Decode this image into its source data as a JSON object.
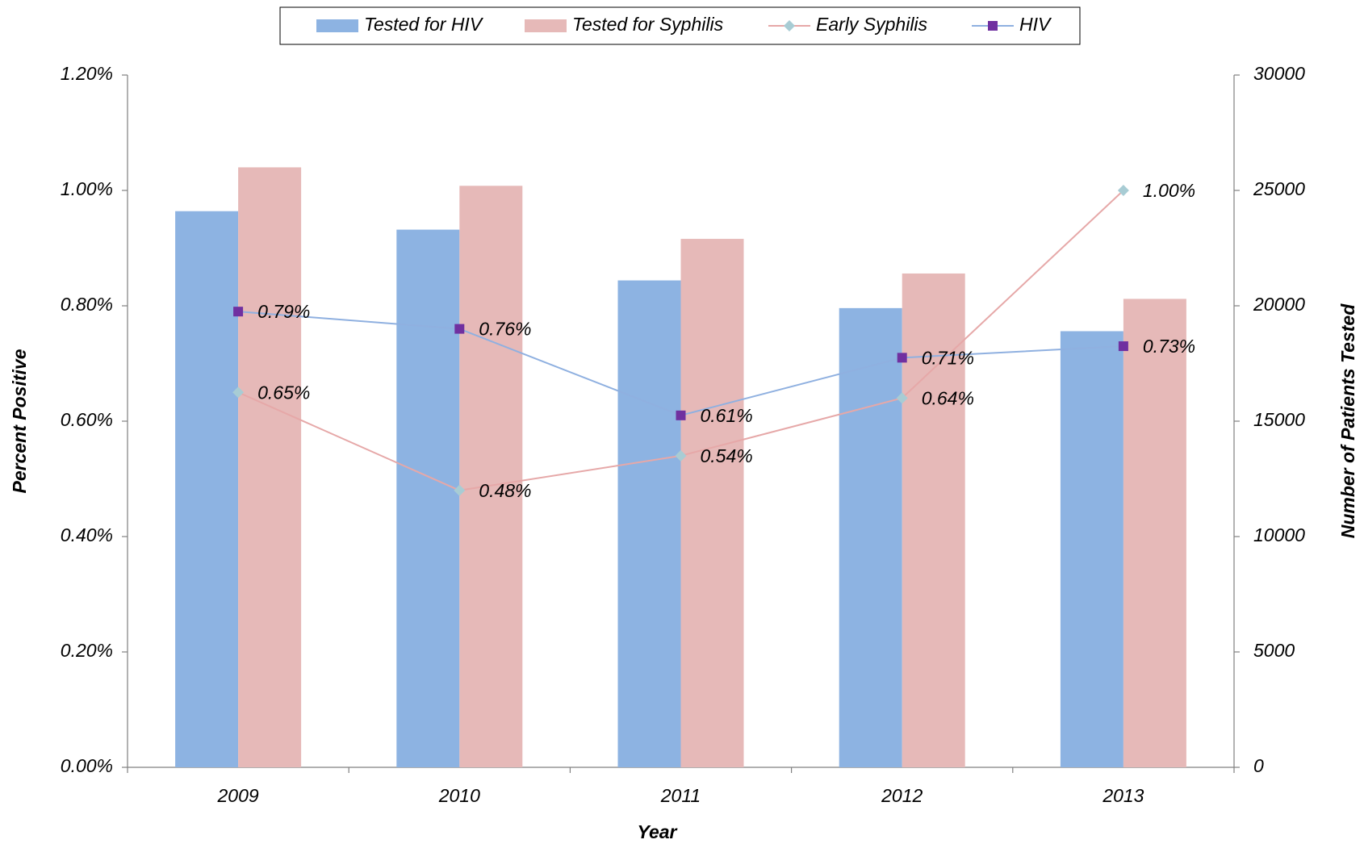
{
  "chart_data": {
    "type": "bar",
    "x_label": "Year",
    "y_label": "Percent Positive",
    "y2_label": "Number of Patients Tested",
    "categories": [
      "2009",
      "2010",
      "2011",
      "2012",
      "2013"
    ],
    "ylim": [
      0,
      1.2
    ],
    "yticks": [
      {
        "value": 0,
        "label": "0.00%"
      },
      {
        "value": 0.2,
        "label": "0.20%"
      },
      {
        "value": 0.4,
        "label": "0.40%"
      },
      {
        "value": 0.6,
        "label": "0.60%"
      },
      {
        "value": 0.8,
        "label": "0.80%"
      },
      {
        "value": 1.0,
        "label": "1.00%"
      },
      {
        "value": 1.2,
        "label": "1.20%"
      }
    ],
    "y2lim": [
      0,
      30000
    ],
    "y2ticks": [
      0,
      5000,
      10000,
      15000,
      20000,
      25000,
      30000
    ],
    "series": [
      {
        "name": "Tested for HIV",
        "type": "bar",
        "axis": "y2",
        "color": "#8db3e2",
        "values": [
          24100,
          23300,
          21100,
          19900,
          18900
        ]
      },
      {
        "name": "Tested for Syphilis",
        "type": "bar",
        "axis": "y2",
        "color": "#e6b9b8",
        "values": [
          26000,
          25200,
          22900,
          21400,
          20300
        ]
      },
      {
        "name": "Early Syphilis",
        "type": "line",
        "marker": "diamond",
        "color": "#e6a8a8",
        "marker_color": "#a8ccd4",
        "values": [
          0.65,
          0.48,
          0.54,
          0.64,
          1.0
        ],
        "value_labels": [
          "0.65%",
          "0.48%",
          "0.54%",
          "0.64%",
          "1.00%"
        ]
      },
      {
        "name": "HIV",
        "type": "line",
        "marker": "square",
        "color": "#8fb0e0",
        "marker_color": "#7030a0",
        "values": [
          0.79,
          0.76,
          0.61,
          0.71,
          0.73
        ],
        "value_labels": [
          "0.79%",
          "0.76%",
          "0.61%",
          "0.71%",
          "0.73%"
        ]
      }
    ]
  }
}
